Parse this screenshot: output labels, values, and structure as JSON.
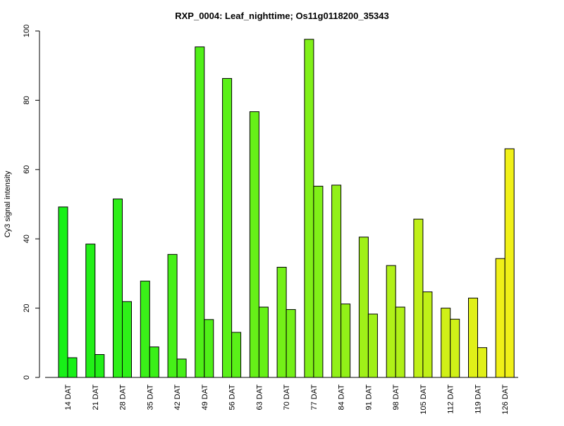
{
  "chart_data": {
    "type": "bar",
    "title": "RXP_0004: Leaf_nighttime; Os11g0118200_35343",
    "xlabel": "",
    "ylabel": "Cy3 signal intensity",
    "ylim": [
      0,
      100
    ],
    "yticks": [
      0,
      20,
      40,
      60,
      80,
      100
    ],
    "grid": false,
    "legend": "none",
    "categories": [
      "14 DAT",
      "21 DAT",
      "28 DAT",
      "35 DAT",
      "42 DAT",
      "49 DAT",
      "56 DAT",
      "63 DAT",
      "70 DAT",
      "77 DAT",
      "84 DAT",
      "91 DAT",
      "98 DAT",
      "105 DAT",
      "112 DAT",
      "119 DAT",
      "126 DAT"
    ],
    "series": [
      {
        "values": [
          49.2,
          38.5,
          51.5,
          27.8,
          35.5,
          95.4,
          86.3,
          76.7,
          31.8,
          97.6,
          55.5,
          40.5,
          32.3,
          45.7,
          20.0,
          22.9,
          34.3
        ]
      },
      {
        "values": [
          5.7,
          6.6,
          21.9,
          8.8,
          5.3,
          16.7,
          13.0,
          20.3,
          19.6,
          55.2,
          21.2,
          18.3,
          20.3,
          24.7,
          16.8,
          8.6,
          66.0
        ]
      }
    ],
    "colors": [
      "#19ff00",
      "#2aff00",
      "#3bff00",
      "#4cff00",
      "#5eff00",
      "#6fff00",
      "#80ff00",
      "#91ff00",
      "#a2ff00",
      "#b3ff00",
      "#c4ff00",
      "#d5ff00",
      "#e6ff00",
      "#f7ff00",
      "#fff700",
      "#ffe600",
      "#ffd500"
    ],
    "bar_colors": [
      "#18f018",
      "#22f018",
      "#2ef018",
      "#3af018",
      "#46f018",
      "#50f018",
      "#5af018",
      "#66f018",
      "#74f018",
      "#80f018",
      "#92f018",
      "#a0f018",
      "#b0f018",
      "#c0f018",
      "#d0f018",
      "#e0f018",
      "#f0f018"
    ]
  }
}
